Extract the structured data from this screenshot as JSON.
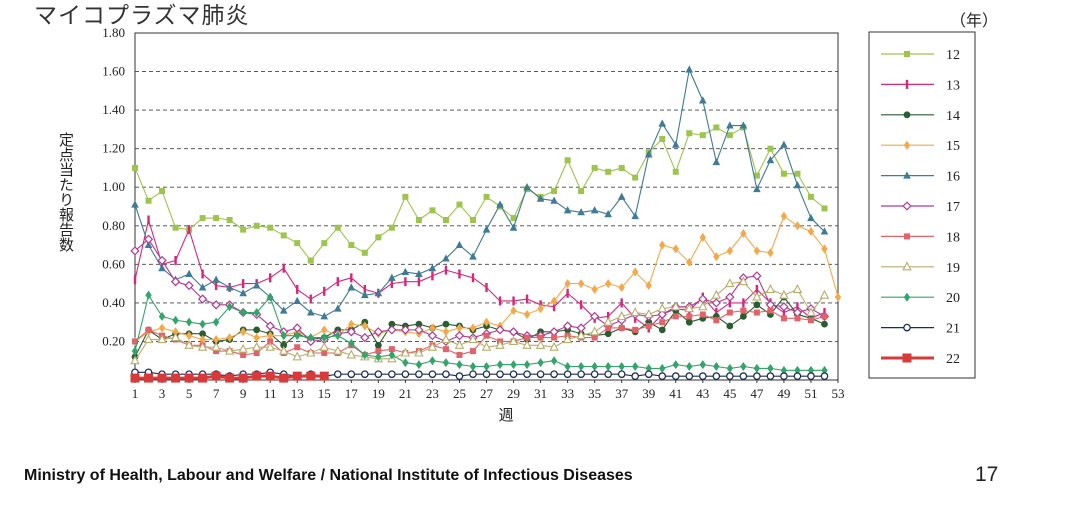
{
  "title": "マイコプラズマ肺炎",
  "unit_label": "（年）",
  "footer": "Ministry of Health, Labour and Welfare / National Institute of Infectious Diseases",
  "page_number": "17",
  "chart_data": {
    "type": "line",
    "ylabel": "定点当たり報告数",
    "xlabel": "週",
    "xlim": [
      1,
      53
    ],
    "ylim": [
      0,
      1.8
    ],
    "yticks": [
      "0.20",
      "0.40",
      "0.60",
      "0.80",
      "1.00",
      "1.20",
      "1.40",
      "1.60",
      "1.80"
    ],
    "xticks": [
      "1",
      "3",
      "5",
      "7",
      "9",
      "11",
      "13",
      "15",
      "17",
      "19",
      "21",
      "23",
      "25",
      "27",
      "29",
      "31",
      "33",
      "35",
      "37",
      "39",
      "41",
      "43",
      "45",
      "47",
      "49",
      "51",
      "53"
    ],
    "grid": "horizontal dashed",
    "legend_position": "right",
    "series": [
      {
        "name": "12",
        "color": "#9dc44d",
        "marker": "square",
        "values": [
          1.1,
          0.93,
          0.98,
          0.79,
          0.78,
          0.84,
          0.84,
          0.83,
          0.78,
          0.8,
          0.79,
          0.75,
          0.71,
          0.62,
          0.71,
          0.79,
          0.7,
          0.66,
          0.74,
          0.79,
          0.95,
          0.83,
          0.88,
          0.83,
          0.91,
          0.83,
          0.95,
          0.9,
          0.84,
          0.99,
          0.95,
          0.98,
          1.14,
          0.98,
          1.1,
          1.08,
          1.1,
          1.05,
          1.18,
          1.25,
          1.08,
          1.28,
          1.27,
          1.31,
          1.27,
          1.31,
          1.06,
          1.2,
          1.07,
          1.07,
          0.95,
          0.89
        ]
      },
      {
        "name": "13",
        "color": "#d6277b",
        "marker": "bar",
        "values": [
          0.52,
          0.83,
          0.6,
          0.62,
          0.78,
          0.55,
          0.49,
          0.48,
          0.5,
          0.5,
          0.53,
          0.58,
          0.47,
          0.42,
          0.46,
          0.51,
          0.53,
          0.47,
          0.45,
          0.5,
          0.51,
          0.51,
          0.54,
          0.57,
          0.55,
          0.53,
          0.48,
          0.41,
          0.41,
          0.42,
          0.39,
          0.38,
          0.45,
          0.39,
          0.32,
          0.33,
          0.4,
          0.32,
          0.27,
          0.34,
          0.37,
          0.36,
          0.43,
          0.35,
          0.4,
          0.4,
          0.47,
          0.4,
          0.35,
          0.38,
          0.32,
          0.35
        ]
      },
      {
        "name": "14",
        "color": "#2a5e30",
        "marker": "circle",
        "values": [
          0.12,
          0.26,
          0.21,
          0.24,
          0.24,
          0.24,
          0.2,
          0.21,
          0.26,
          0.26,
          0.24,
          0.18,
          0.24,
          0.21,
          0.22,
          0.26,
          0.26,
          0.3,
          0.18,
          0.29,
          0.28,
          0.29,
          0.27,
          0.29,
          0.28,
          0.26,
          0.28,
          0.26,
          0.25,
          0.21,
          0.25,
          0.25,
          0.26,
          0.24,
          0.23,
          0.24,
          0.27,
          0.25,
          0.3,
          0.26,
          0.36,
          0.3,
          0.32,
          0.33,
          0.28,
          0.33,
          0.39,
          0.34,
          0.43,
          0.34,
          0.32,
          0.29
        ]
      },
      {
        "name": "15",
        "color": "#f3a94b",
        "marker": "diamond",
        "values": [
          0.2,
          0.25,
          0.27,
          0.25,
          0.23,
          0.21,
          0.21,
          0.22,
          0.25,
          0.22,
          0.23,
          0.23,
          0.25,
          0.22,
          0.26,
          0.23,
          0.29,
          0.28,
          0.24,
          0.26,
          0.25,
          0.24,
          0.27,
          0.25,
          0.27,
          0.27,
          0.3,
          0.28,
          0.36,
          0.34,
          0.37,
          0.41,
          0.5,
          0.5,
          0.47,
          0.5,
          0.48,
          0.56,
          0.49,
          0.7,
          0.68,
          0.61,
          0.74,
          0.64,
          0.67,
          0.76,
          0.67,
          0.66,
          0.85,
          0.8,
          0.77,
          0.68,
          0.43
        ]
      },
      {
        "name": "16",
        "color": "#3f7a96",
        "marker": "triangle",
        "values": [
          0.91,
          0.7,
          0.58,
          0.52,
          0.55,
          0.48,
          0.52,
          0.48,
          0.45,
          0.49,
          0.43,
          0.36,
          0.41,
          0.35,
          0.33,
          0.37,
          0.48,
          0.44,
          0.45,
          0.53,
          0.56,
          0.55,
          0.58,
          0.63,
          0.7,
          0.64,
          0.78,
          0.91,
          0.79,
          1.0,
          0.94,
          0.93,
          0.88,
          0.87,
          0.88,
          0.86,
          0.95,
          0.85,
          1.17,
          1.33,
          1.22,
          1.61,
          1.45,
          1.13,
          1.32,
          1.32,
          0.99,
          1.14,
          1.22,
          1.01,
          0.84,
          0.77
        ]
      },
      {
        "name": "17",
        "color": "#b03a96",
        "marker": "diamond-open",
        "values": [
          0.67,
          0.73,
          0.62,
          0.51,
          0.49,
          0.42,
          0.39,
          0.39,
          0.35,
          0.34,
          0.28,
          0.25,
          0.27,
          0.2,
          0.21,
          0.24,
          0.25,
          0.22,
          0.25,
          0.26,
          0.26,
          0.26,
          0.23,
          0.2,
          0.23,
          0.22,
          0.24,
          0.26,
          0.25,
          0.23,
          0.23,
          0.25,
          0.28,
          0.27,
          0.33,
          0.28,
          0.31,
          0.34,
          0.33,
          0.34,
          0.38,
          0.38,
          0.42,
          0.4,
          0.43,
          0.53,
          0.54,
          0.39,
          0.38,
          0.35,
          0.37,
          0.33
        ]
      },
      {
        "name": "18",
        "color": "#e0636a",
        "marker": "square",
        "values": [
          0.2,
          0.26,
          0.23,
          0.21,
          0.18,
          0.18,
          0.15,
          0.15,
          0.13,
          0.14,
          0.2,
          0.14,
          0.17,
          0.14,
          0.14,
          0.14,
          0.18,
          0.13,
          0.15,
          0.16,
          0.14,
          0.15,
          0.18,
          0.16,
          0.13,
          0.15,
          0.23,
          0.2,
          0.2,
          0.22,
          0.22,
          0.22,
          0.23,
          0.22,
          0.22,
          0.27,
          0.27,
          0.26,
          0.28,
          0.3,
          0.33,
          0.33,
          0.34,
          0.31,
          0.35,
          0.36,
          0.35,
          0.36,
          0.32,
          0.32,
          0.31,
          0.33
        ]
      },
      {
        "name": "19",
        "color": "#b7ad6c",
        "marker": "triangle-open",
        "values": [
          0.1,
          0.21,
          0.21,
          0.22,
          0.18,
          0.17,
          0.17,
          0.15,
          0.16,
          0.17,
          0.17,
          0.15,
          0.12,
          0.14,
          0.17,
          0.15,
          0.13,
          0.12,
          0.11,
          0.11,
          0.14,
          0.14,
          0.17,
          0.21,
          0.18,
          0.21,
          0.17,
          0.18,
          0.2,
          0.18,
          0.18,
          0.17,
          0.21,
          0.23,
          0.25,
          0.3,
          0.33,
          0.35,
          0.34,
          0.37,
          0.38,
          0.37,
          0.38,
          0.44,
          0.5,
          0.51,
          0.43,
          0.47,
          0.44,
          0.47,
          0.35,
          0.44
        ]
      },
      {
        "name": "20",
        "color": "#34a56a",
        "marker": "diamond",
        "values": [
          0.15,
          0.44,
          0.33,
          0.31,
          0.3,
          0.29,
          0.3,
          0.38,
          0.35,
          0.35,
          0.43,
          0.23,
          0.23,
          0.22,
          0.22,
          0.23,
          0.19,
          0.13,
          0.12,
          0.13,
          0.09,
          0.08,
          0.1,
          0.09,
          0.08,
          0.07,
          0.07,
          0.08,
          0.08,
          0.08,
          0.09,
          0.1,
          0.07,
          0.07,
          0.07,
          0.07,
          0.07,
          0.07,
          0.06,
          0.06,
          0.08,
          0.07,
          0.08,
          0.07,
          0.06,
          0.07,
          0.06,
          0.06,
          0.05,
          0.05,
          0.05,
          0.05
        ]
      },
      {
        "name": "21",
        "color": "#1b2e57",
        "marker": "circle-open",
        "values": [
          0.04,
          0.04,
          0.03,
          0.03,
          0.03,
          0.03,
          0.03,
          0.02,
          0.03,
          0.03,
          0.04,
          0.03,
          0.02,
          0.03,
          0.02,
          0.03,
          0.03,
          0.03,
          0.03,
          0.03,
          0.03,
          0.03,
          0.03,
          0.03,
          0.02,
          0.03,
          0.03,
          0.03,
          0.03,
          0.03,
          0.03,
          0.03,
          0.03,
          0.03,
          0.03,
          0.03,
          0.03,
          0.02,
          0.03,
          0.02,
          0.02,
          0.02,
          0.02,
          0.02,
          0.02,
          0.02,
          0.02,
          0.02,
          0.02,
          0.02,
          0.02,
          0.02
        ]
      },
      {
        "name": "22",
        "color": "#d63a3a",
        "marker": "square-big",
        "thick": true,
        "values": [
          0.01,
          0.01,
          0.01,
          0.01,
          0.01,
          0.01,
          0.02,
          0.01,
          0.01,
          0.02,
          0.02,
          0.01,
          0.02,
          0.02,
          0.02
        ]
      }
    ]
  }
}
